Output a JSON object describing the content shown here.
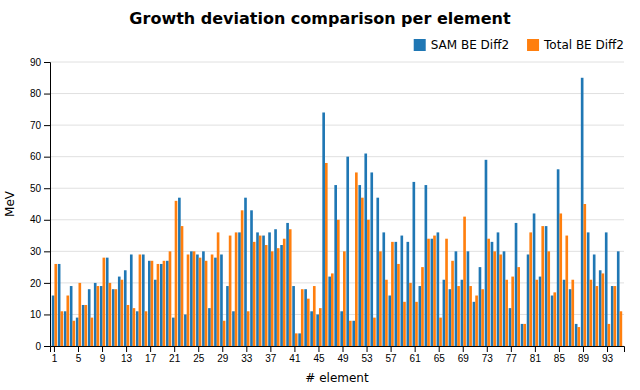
{
  "chart_data": {
    "type": "bar",
    "title": "Growth deviation comparison per element",
    "xlabel": "# element",
    "ylabel": "MeV",
    "categories": [
      "1",
      null,
      null,
      null,
      "5",
      null,
      null,
      null,
      "9",
      null,
      null,
      null,
      "13",
      null,
      null,
      null,
      "17",
      null,
      null,
      null,
      "21",
      null,
      null,
      null,
      "25",
      null,
      null,
      null,
      "29",
      null,
      null,
      null,
      "33",
      null,
      null,
      null,
      "37",
      null,
      null,
      null,
      "41",
      null,
      null,
      null,
      "45",
      null,
      null,
      null,
      "49",
      null,
      null,
      null,
      "53",
      null,
      null,
      null,
      "57",
      null,
      null,
      null,
      "61",
      null,
      null,
      null,
      "65",
      null,
      null,
      null,
      "69",
      null,
      null,
      null,
      "73",
      null,
      null,
      null,
      "77",
      null,
      null,
      null,
      "81",
      null,
      null,
      null,
      "85",
      null,
      null,
      null,
      "89",
      null,
      null,
      null,
      "93",
      null,
      null
    ],
    "series": [
      {
        "name": "SAM BE Diff2",
        "values": [
          16,
          26,
          11,
          19,
          9,
          13,
          18,
          20,
          19,
          28,
          18,
          22,
          24,
          29,
          11,
          29,
          27,
          21,
          26,
          27,
          9,
          47,
          10,
          30,
          29,
          30,
          12,
          28,
          29,
          19,
          11,
          36,
          47,
          43,
          36,
          35,
          36,
          37,
          32,
          39,
          19,
          4,
          18,
          11,
          10,
          74,
          22,
          51,
          11,
          60,
          8,
          51,
          61,
          55,
          47,
          36,
          16,
          33,
          35,
          33,
          52,
          19,
          51,
          34,
          36,
          21,
          18,
          30,
          21,
          30,
          14,
          25,
          59,
          33,
          36,
          30,
          12,
          39,
          7,
          29,
          42,
          22,
          38,
          16,
          56,
          21,
          18,
          7,
          85,
          36,
          29,
          24,
          36,
          19,
          30
        ]
      },
      {
        "name": "Total BE Diff2",
        "values": [
          26,
          11,
          16,
          8,
          20,
          13,
          9,
          19,
          28,
          20,
          18,
          21,
          13,
          12,
          29,
          11,
          27,
          26,
          27,
          30,
          46,
          38,
          29,
          30,
          28,
          27,
          29,
          36,
          8,
          35,
          36,
          43,
          11,
          33,
          35,
          32,
          30,
          31,
          34,
          37,
          4,
          18,
          15,
          19,
          12,
          58,
          23,
          40,
          30,
          8,
          55,
          47,
          40,
          9,
          30,
          21,
          33,
          26,
          14,
          20,
          14,
          25,
          34,
          35,
          9,
          34,
          27,
          19,
          41,
          19,
          16,
          18,
          34,
          30,
          29,
          21,
          22,
          25,
          7,
          36,
          21,
          38,
          30,
          17,
          42,
          35,
          21,
          6,
          45,
          21,
          19,
          23,
          7,
          19,
          11
        ]
      }
    ],
    "ylim": [
      0,
      90
    ],
    "yticks": [
      0,
      10,
      20,
      30,
      40,
      50,
      60,
      70,
      80,
      90
    ],
    "grid": true,
    "legend": "upper right"
  }
}
